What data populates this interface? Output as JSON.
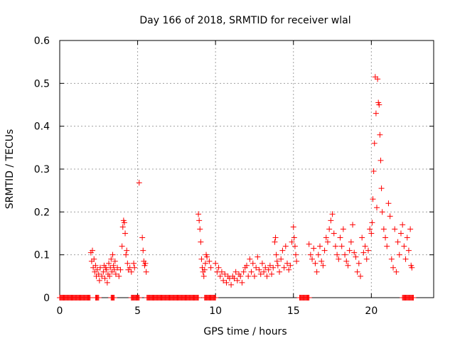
{
  "chart_data": {
    "type": "scatter",
    "title": "Day 166 of 2018, SRMTID for receiver wlal",
    "xlabel": "GPS time / hours",
    "ylabel": "SRMTID / TECUs",
    "xlim": [
      0,
      24
    ],
    "ylim": [
      0,
      0.6
    ],
    "x_ticks": [
      0,
      5,
      10,
      15,
      20
    ],
    "x_tick_labels": [
      "0",
      "5",
      "10",
      "15",
      "20"
    ],
    "y_ticks": [
      0,
      0.1,
      0.2,
      0.3,
      0.4,
      0.5,
      0.6
    ],
    "y_tick_labels": [
      "0",
      "0.1",
      "0.2",
      "0.3",
      "0.4",
      "0.5",
      "0.6"
    ],
    "grid": true,
    "marker": "+",
    "color": "#ff0000",
    "series": [
      {
        "name": "SRMTID",
        "points": [
          [
            2.0,
            0.105
          ],
          [
            2.05,
            0.085
          ],
          [
            2.1,
            0.11
          ],
          [
            2.15,
            0.07
          ],
          [
            2.2,
            0.09
          ],
          [
            2.25,
            0.06
          ],
          [
            2.3,
            0.075
          ],
          [
            2.35,
            0.05
          ],
          [
            2.4,
            0.065
          ],
          [
            2.5,
            0.055
          ],
          [
            2.55,
            0.04
          ],
          [
            2.6,
            0.07
          ],
          [
            2.7,
            0.05
          ],
          [
            2.8,
            0.06
          ],
          [
            2.85,
            0.075
          ],
          [
            2.9,
            0.045
          ],
          [
            2.95,
            0.07
          ],
          [
            3.0,
            0.065
          ],
          [
            3.05,
            0.035
          ],
          [
            3.1,
            0.055
          ],
          [
            3.15,
            0.08
          ],
          [
            3.2,
            0.05
          ],
          [
            3.25,
            0.07
          ],
          [
            3.3,
            0.09
          ],
          [
            3.35,
            0.06
          ],
          [
            3.4,
            0.1
          ],
          [
            3.45,
            0.075
          ],
          [
            3.5,
            0.065
          ],
          [
            3.55,
            0.085
          ],
          [
            3.6,
            0.055
          ],
          [
            3.7,
            0.07
          ],
          [
            3.8,
            0.05
          ],
          [
            3.9,
            0.065
          ],
          [
            4.0,
            0.12
          ],
          [
            4.05,
            0.165
          ],
          [
            4.1,
            0.18
          ],
          [
            4.15,
            0.175
          ],
          [
            4.2,
            0.15
          ],
          [
            4.25,
            0.1
          ],
          [
            4.3,
            0.11
          ],
          [
            4.35,
            0.08
          ],
          [
            4.4,
            0.065
          ],
          [
            4.5,
            0.07
          ],
          [
            4.6,
            0.06
          ],
          [
            4.75,
            0.08
          ],
          [
            4.8,
            0.07
          ],
          [
            5.1,
            0.268
          ],
          [
            5.3,
            0.14
          ],
          [
            5.35,
            0.11
          ],
          [
            5.4,
            0.085
          ],
          [
            5.45,
            0.075
          ],
          [
            5.5,
            0.08
          ],
          [
            5.55,
            0.06
          ],
          [
            8.9,
            0.195
          ],
          [
            8.95,
            0.18
          ],
          [
            9.0,
            0.16
          ],
          [
            9.05,
            0.13
          ],
          [
            9.1,
            0.09
          ],
          [
            9.15,
            0.07
          ],
          [
            9.2,
            0.06
          ],
          [
            9.25,
            0.05
          ],
          [
            9.3,
            0.065
          ],
          [
            9.35,
            0.08
          ],
          [
            9.4,
            0.1
          ],
          [
            9.45,
            0.095
          ],
          [
            9.6,
            0.085
          ],
          [
            9.7,
            0.07
          ],
          [
            10.0,
            0.08
          ],
          [
            10.1,
            0.06
          ],
          [
            10.2,
            0.07
          ],
          [
            10.3,
            0.05
          ],
          [
            10.4,
            0.06
          ],
          [
            10.5,
            0.04
          ],
          [
            10.6,
            0.055
          ],
          [
            10.7,
            0.035
          ],
          [
            10.8,
            0.05
          ],
          [
            10.9,
            0.045
          ],
          [
            11.0,
            0.03
          ],
          [
            11.1,
            0.05
          ],
          [
            11.2,
            0.045
          ],
          [
            11.3,
            0.06
          ],
          [
            11.4,
            0.04
          ],
          [
            11.5,
            0.055
          ],
          [
            11.6,
            0.05
          ],
          [
            11.7,
            0.035
          ],
          [
            11.8,
            0.06
          ],
          [
            11.9,
            0.07
          ],
          [
            12.0,
            0.075
          ],
          [
            12.1,
            0.05
          ],
          [
            12.2,
            0.09
          ],
          [
            12.3,
            0.06
          ],
          [
            12.4,
            0.08
          ],
          [
            12.5,
            0.05
          ],
          [
            12.6,
            0.07
          ],
          [
            12.7,
            0.095
          ],
          [
            12.8,
            0.065
          ],
          [
            12.9,
            0.055
          ],
          [
            13.0,
            0.08
          ],
          [
            13.1,
            0.06
          ],
          [
            13.2,
            0.07
          ],
          [
            13.3,
            0.05
          ],
          [
            13.4,
            0.065
          ],
          [
            13.5,
            0.075
          ],
          [
            13.6,
            0.055
          ],
          [
            13.7,
            0.07
          ],
          [
            13.8,
            0.13
          ],
          [
            13.85,
            0.14
          ],
          [
            13.9,
            0.1
          ],
          [
            13.95,
            0.085
          ],
          [
            14.0,
            0.075
          ],
          [
            14.1,
            0.06
          ],
          [
            14.2,
            0.09
          ],
          [
            14.3,
            0.11
          ],
          [
            14.4,
            0.07
          ],
          [
            14.5,
            0.12
          ],
          [
            14.6,
            0.08
          ],
          [
            14.7,
            0.065
          ],
          [
            14.8,
            0.075
          ],
          [
            14.9,
            0.13
          ],
          [
            15.0,
            0.165
          ],
          [
            15.05,
            0.14
          ],
          [
            15.1,
            0.12
          ],
          [
            15.15,
            0.1
          ],
          [
            15.2,
            0.085
          ],
          [
            16.0,
            0.125
          ],
          [
            16.1,
            0.1
          ],
          [
            16.2,
            0.09
          ],
          [
            16.3,
            0.115
          ],
          [
            16.4,
            0.08
          ],
          [
            16.5,
            0.06
          ],
          [
            16.6,
            0.1
          ],
          [
            16.7,
            0.12
          ],
          [
            16.8,
            0.085
          ],
          [
            16.9,
            0.075
          ],
          [
            17.0,
            0.11
          ],
          [
            17.1,
            0.14
          ],
          [
            17.2,
            0.13
          ],
          [
            17.3,
            0.16
          ],
          [
            17.4,
            0.18
          ],
          [
            17.5,
            0.195
          ],
          [
            17.6,
            0.15
          ],
          [
            17.7,
            0.12
          ],
          [
            17.8,
            0.1
          ],
          [
            17.9,
            0.09
          ],
          [
            18.0,
            0.14
          ],
          [
            18.1,
            0.12
          ],
          [
            18.2,
            0.16
          ],
          [
            18.3,
            0.1
          ],
          [
            18.4,
            0.085
          ],
          [
            18.5,
            0.075
          ],
          [
            18.6,
            0.11
          ],
          [
            18.7,
            0.13
          ],
          [
            18.8,
            0.17
          ],
          [
            18.9,
            0.105
          ],
          [
            19.0,
            0.095
          ],
          [
            19.1,
            0.06
          ],
          [
            19.2,
            0.08
          ],
          [
            19.3,
            0.05
          ],
          [
            19.4,
            0.14
          ],
          [
            19.5,
            0.105
          ],
          [
            19.6,
            0.12
          ],
          [
            19.7,
            0.09
          ],
          [
            19.8,
            0.11
          ],
          [
            19.9,
            0.16
          ],
          [
            20.0,
            0.15
          ],
          [
            20.05,
            0.175
          ],
          [
            20.1,
            0.23
          ],
          [
            20.15,
            0.295
          ],
          [
            20.2,
            0.36
          ],
          [
            20.25,
            0.515
          ],
          [
            20.3,
            0.43
          ],
          [
            20.35,
            0.21
          ],
          [
            20.4,
            0.51
          ],
          [
            20.45,
            0.455
          ],
          [
            20.5,
            0.45
          ],
          [
            20.55,
            0.38
          ],
          [
            20.6,
            0.32
          ],
          [
            20.65,
            0.255
          ],
          [
            20.7,
            0.2
          ],
          [
            20.8,
            0.16
          ],
          [
            20.9,
            0.14
          ],
          [
            21.0,
            0.12
          ],
          [
            21.1,
            0.22
          ],
          [
            21.2,
            0.19
          ],
          [
            21.3,
            0.09
          ],
          [
            21.4,
            0.07
          ],
          [
            21.5,
            0.16
          ],
          [
            21.6,
            0.06
          ],
          [
            21.7,
            0.13
          ],
          [
            21.8,
            0.1
          ],
          [
            21.9,
            0.15
          ],
          [
            22.0,
            0.17
          ],
          [
            22.1,
            0.12
          ],
          [
            22.2,
            0.09
          ],
          [
            22.3,
            0.14
          ],
          [
            22.4,
            0.11
          ],
          [
            22.5,
            0.16
          ],
          [
            22.55,
            0.075
          ],
          [
            22.6,
            0.07
          ]
        ]
      }
    ],
    "zero_value_intervals_hours": [
      [
        0.0,
        1.95
      ],
      [
        2.3,
        2.5
      ],
      [
        3.3,
        3.5
      ],
      [
        4.6,
        5.1
      ],
      [
        5.6,
        8.9
      ],
      [
        9.3,
        10.0
      ],
      [
        15.4,
        16.0
      ],
      [
        22.0,
        22.7
      ]
    ]
  }
}
